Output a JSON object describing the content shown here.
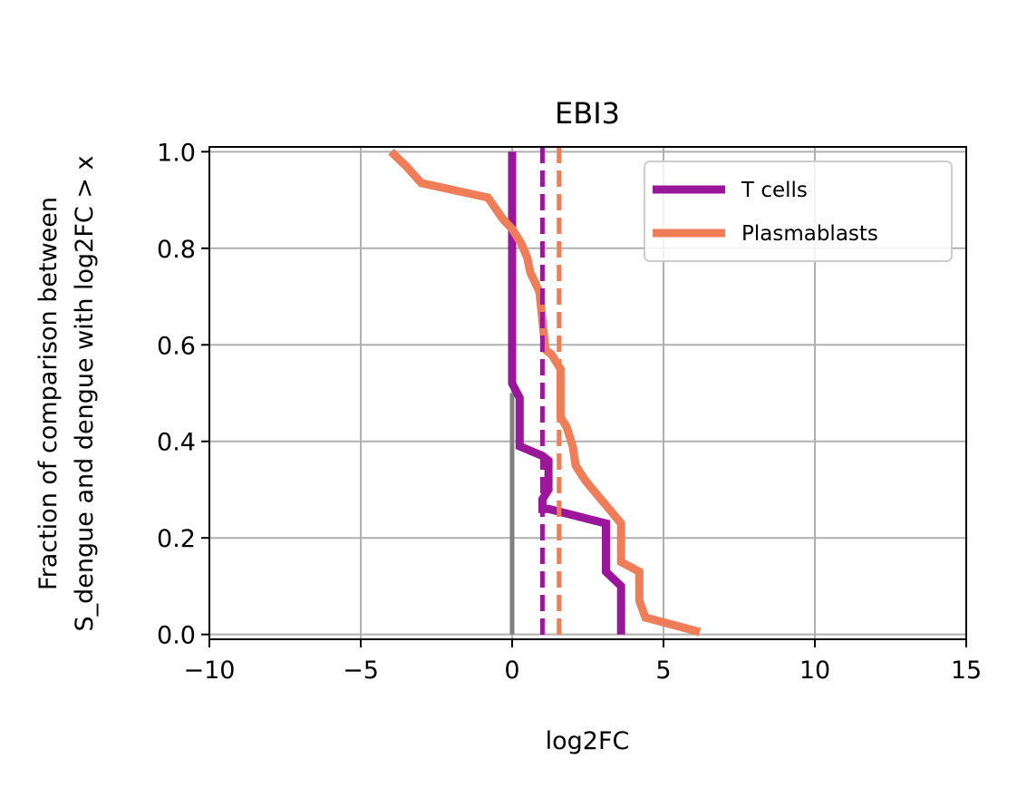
{
  "chart_data": {
    "type": "line",
    "title": "EBI3",
    "xlabel": "log2FC",
    "ylabel_lines": [
      "Fraction of comparison between",
      "S_dengue and dengue with log2FC > x"
    ],
    "xlim": [
      -10,
      15
    ],
    "ylim": [
      -0.01,
      1.01
    ],
    "xticks": [
      -10,
      -5,
      0,
      5,
      10,
      15
    ],
    "xtick_labels": [
      "−10",
      "−5",
      "0",
      "5",
      "10",
      "15"
    ],
    "yticks": [
      0.0,
      0.2,
      0.4,
      0.6,
      0.8,
      1.0
    ],
    "ytick_labels": [
      "0.0",
      "0.2",
      "0.4",
      "0.6",
      "0.8",
      "1.0"
    ],
    "grid": true,
    "legend_placement": "upper-right",
    "zero_line": {
      "x": 0,
      "y_range": [
        0.0,
        0.5
      ],
      "color": "#808080"
    },
    "series": [
      {
        "name": "T cells",
        "color": "#9a179b",
        "median_dashed_x": 1.0,
        "x": [
          0.0,
          0.0,
          0.0,
          0.25,
          0.25,
          1.0,
          1.2,
          1.2,
          1.0,
          1.0,
          1.2,
          3.1,
          3.1,
          3.1,
          3.6,
          3.6
        ],
        "y": [
          1.0,
          0.9,
          0.52,
          0.49,
          0.39,
          0.37,
          0.36,
          0.3,
          0.28,
          0.26,
          0.26,
          0.23,
          0.2,
          0.13,
          0.1,
          0.0
        ]
      },
      {
        "name": "Plasmablasts",
        "color": "#ef7d57",
        "median_dashed_x": 1.55,
        "x": [
          -4.0,
          -3.5,
          -3.0,
          -0.8,
          -0.3,
          0.0,
          0.3,
          0.5,
          0.6,
          0.9,
          1.0,
          1.1,
          1.3,
          1.6,
          1.6,
          1.8,
          2.0,
          2.1,
          2.4,
          3.2,
          3.6,
          3.6,
          4.2,
          4.2,
          4.4,
          6.2
        ],
        "y": [
          1.0,
          0.97,
          0.935,
          0.905,
          0.86,
          0.84,
          0.81,
          0.78,
          0.75,
          0.71,
          0.65,
          0.59,
          0.58,
          0.55,
          0.45,
          0.43,
          0.39,
          0.35,
          0.32,
          0.26,
          0.23,
          0.15,
          0.13,
          0.07,
          0.035,
          0.005
        ]
      }
    ]
  }
}
